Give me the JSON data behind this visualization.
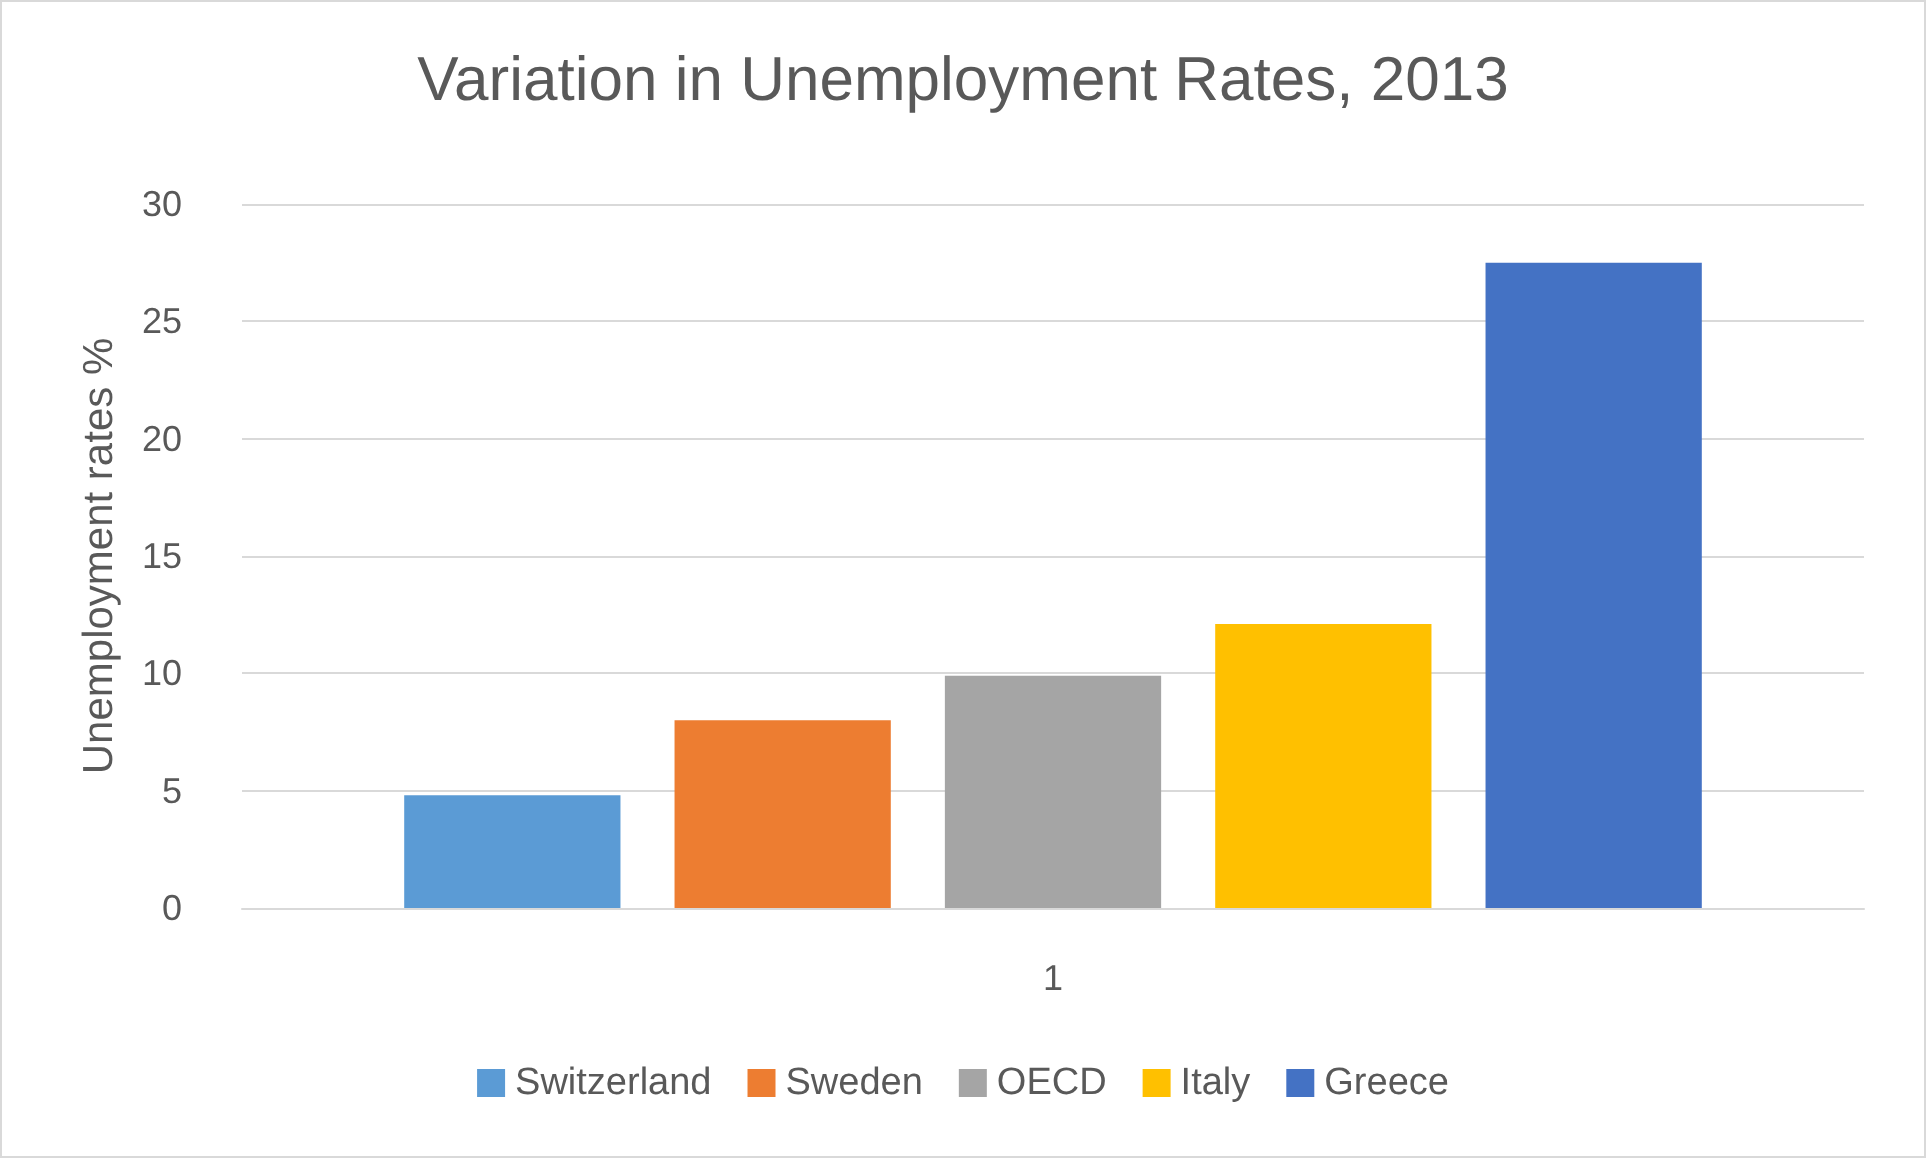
{
  "chart_data": {
    "type": "bar",
    "title": "Variation in Unemployment Rates, 2013",
    "ylabel": "Unemployment rates %",
    "categories": [
      "1"
    ],
    "series": [
      {
        "name": "Switzerland",
        "color": "#5b9bd5",
        "values": [
          4.8
        ]
      },
      {
        "name": "Sweden",
        "color": "#ed7d31",
        "values": [
          8.0
        ]
      },
      {
        "name": "OECD",
        "color": "#a5a5a5",
        "values": [
          9.9
        ]
      },
      {
        "name": "Italy",
        "color": "#ffc000",
        "values": [
          12.1
        ]
      },
      {
        "name": "Greece",
        "color": "#4472c4",
        "values": [
          27.5
        ]
      }
    ],
    "ylim": [
      0,
      30
    ],
    "yticks": [
      0,
      5,
      10,
      15,
      20,
      25,
      30
    ],
    "grid": "y",
    "legend": "bottom"
  }
}
